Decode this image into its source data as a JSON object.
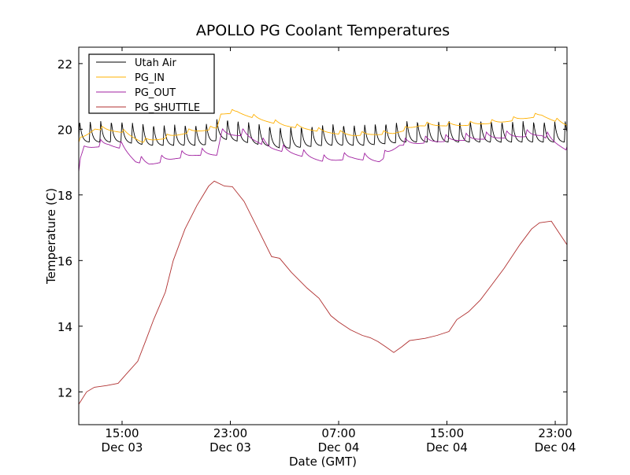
{
  "chart_data": {
    "type": "line",
    "title": "APOLLO PG Coolant Temperatures",
    "xlabel": "Date (GMT)",
    "ylabel": "Temperature (C)",
    "x_units": "hours since Dec 03 00:00 GMT",
    "xlim": [
      11.8,
      47.87
    ],
    "ylim": [
      11,
      22.5
    ],
    "grid": false,
    "legend_position": "top-left",
    "x_ticks": [
      {
        "value": 15,
        "time": "15:00",
        "date": "Dec 03"
      },
      {
        "value": 23,
        "time": "23:00",
        "date": "Dec 03"
      },
      {
        "value": 31,
        "time": "07:00",
        "date": "Dec 04"
      },
      {
        "value": 39,
        "time": "15:00",
        "date": "Dec 04"
      },
      {
        "value": 47,
        "time": "23:00",
        "date": "Dec 04"
      }
    ],
    "y_ticks": [
      12,
      14,
      16,
      18,
      20,
      22
    ],
    "series": [
      {
        "name": "Utah Air",
        "color": "#000000",
        "oscillation": {
          "amplitude": 0.65,
          "period_hours": 0.78
        },
        "points": [
          [
            11.8,
            19.6
          ],
          [
            15,
            19.6
          ],
          [
            17,
            19.5
          ],
          [
            21,
            19.5
          ],
          [
            22.3,
            19.7
          ],
          [
            24,
            19.6
          ],
          [
            27,
            19.4
          ],
          [
            30,
            19.5
          ],
          [
            33,
            19.5
          ],
          [
            36,
            19.6
          ],
          [
            40,
            19.6
          ],
          [
            44,
            19.6
          ],
          [
            47.87,
            19.6
          ]
        ]
      },
      {
        "name": "PG_IN",
        "color": "#FFB000",
        "oscillation": {
          "amplitude": 0.12,
          "period_hours": 1.6
        },
        "points": [
          [
            11.8,
            19.6
          ],
          [
            13,
            20.0
          ],
          [
            15,
            19.9
          ],
          [
            16.5,
            19.6
          ],
          [
            18,
            19.7
          ],
          [
            20,
            19.9
          ],
          [
            22,
            20.0
          ],
          [
            22.3,
            20.45
          ],
          [
            23.5,
            20.5
          ],
          [
            25,
            20.3
          ],
          [
            27,
            20.1
          ],
          [
            30,
            19.9
          ],
          [
            32,
            19.8
          ],
          [
            35,
            19.85
          ],
          [
            37,
            20.1
          ],
          [
            40,
            20.1
          ],
          [
            43,
            20.2
          ],
          [
            46,
            20.4
          ],
          [
            47.87,
            20.1
          ]
        ]
      },
      {
        "name": "PG_OUT",
        "color": "#A020A0",
        "oscillation": {
          "amplitude": 0.22,
          "period_hours": 1.5
        },
        "points": [
          [
            11.8,
            18.7
          ],
          [
            12.2,
            19.4
          ],
          [
            14,
            19.5
          ],
          [
            15,
            19.4
          ],
          [
            16,
            19.0
          ],
          [
            17,
            18.9
          ],
          [
            19,
            19.1
          ],
          [
            20.5,
            19.2
          ],
          [
            22,
            19.2
          ],
          [
            22.3,
            19.8
          ],
          [
            24,
            19.8
          ],
          [
            26,
            19.4
          ],
          [
            28,
            19.2
          ],
          [
            30,
            19.0
          ],
          [
            32,
            19.1
          ],
          [
            34,
            19.0
          ],
          [
            35.5,
            19.5
          ],
          [
            38,
            19.6
          ],
          [
            42,
            19.7
          ],
          [
            46,
            19.8
          ],
          [
            47.87,
            19.35
          ]
        ]
      },
      {
        "name": "PG_SHUTTLE",
        "color": "#B03030",
        "oscillation": {
          "amplitude": 0,
          "period_hours": 1
        },
        "points": [
          [
            11.8,
            11.62
          ],
          [
            12.38,
            12.0
          ],
          [
            12.96,
            12.14
          ],
          [
            13.84,
            12.19
          ],
          [
            14.71,
            12.26
          ],
          [
            15.29,
            12.53
          ],
          [
            16.16,
            12.93
          ],
          [
            16.75,
            13.56
          ],
          [
            17.33,
            14.2
          ],
          [
            18.2,
            15.04
          ],
          [
            18.78,
            16.0
          ],
          [
            19.65,
            16.96
          ],
          [
            20.53,
            17.68
          ],
          [
            21.4,
            18.27
          ],
          [
            21.81,
            18.42
          ],
          [
            22.56,
            18.27
          ],
          [
            23.15,
            18.25
          ],
          [
            24.02,
            17.8
          ],
          [
            24.89,
            17.08
          ],
          [
            26.05,
            16.12
          ],
          [
            26.64,
            16.07
          ],
          [
            27.51,
            15.64
          ],
          [
            28.67,
            15.16
          ],
          [
            29.55,
            14.85
          ],
          [
            30.42,
            14.32
          ],
          [
            31.0,
            14.13
          ],
          [
            31.87,
            13.89
          ],
          [
            32.75,
            13.72
          ],
          [
            33.33,
            13.65
          ],
          [
            33.91,
            13.53
          ],
          [
            34.49,
            13.37
          ],
          [
            35.07,
            13.2
          ],
          [
            35.65,
            13.37
          ],
          [
            36.24,
            13.56
          ],
          [
            37.4,
            13.63
          ],
          [
            38.27,
            13.72
          ],
          [
            39.15,
            13.84
          ],
          [
            39.73,
            14.2
          ],
          [
            40.6,
            14.44
          ],
          [
            41.47,
            14.8
          ],
          [
            42.35,
            15.28
          ],
          [
            43.22,
            15.76
          ],
          [
            44.38,
            16.48
          ],
          [
            45.25,
            16.96
          ],
          [
            45.84,
            17.15
          ],
          [
            46.71,
            17.2
          ],
          [
            47.29,
            16.84
          ],
          [
            47.87,
            16.48
          ]
        ]
      }
    ]
  }
}
